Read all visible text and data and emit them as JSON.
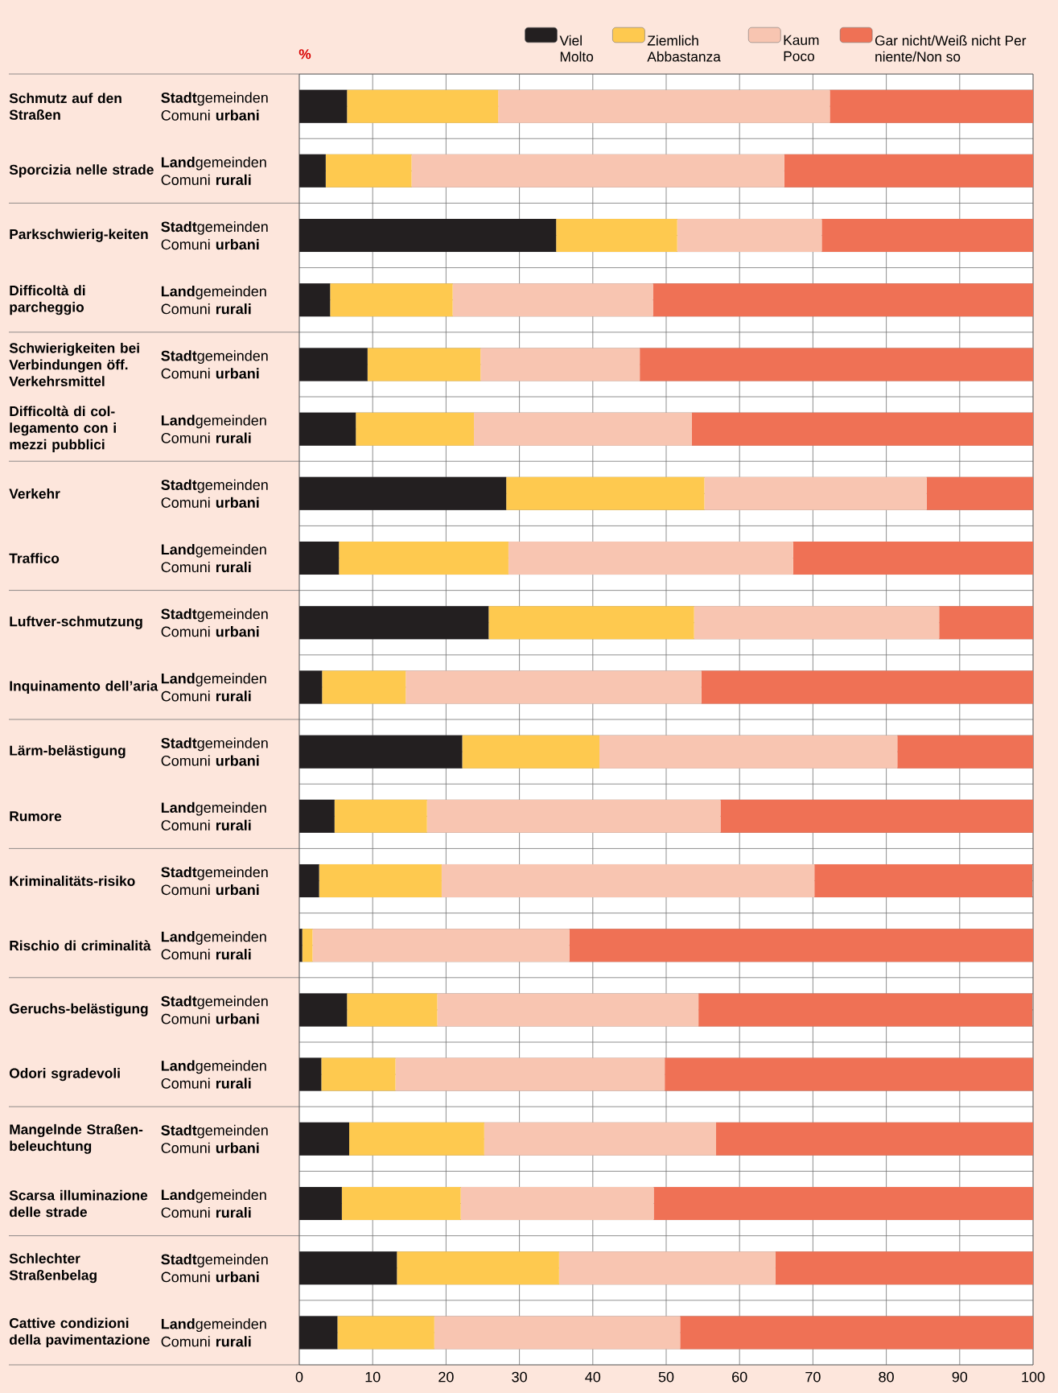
{
  "chart_data": {
    "type": "bar",
    "orientation": "horizontal",
    "stacked": true,
    "xlabel": "%",
    "categories": [
      "**Stadt**gemeinden Comuni **urbani**",
      "**Land**gemeinden Comuni **rurali**",
      "**Stadt**gemeinden Comuni **urbani**",
      "**Land**gemeinden Comuni **rurali**",
      "**Stadt**gemeinden Comuni **urbani**",
      "**Land**gemeinden Comuni **rurali**",
      "**Stadt**gemeinden Comuni **urbani**",
      "**Land**gemeinden Comuni **rurali**",
      "**Stadt**gemeinden Comuni **urbani**",
      "**Land**gemeinden Comuni **rurali**",
      "**Stadt**gemeinden Comuni **urbani**",
      "**Land**gemeinden Comuni **rurali**",
      "**Stadt**gemeinden Comuni **urbani**",
      "**Land**gemeinden Comuni **rurali**",
      "**Stadt**gemeinden Comuni **urbani**",
      "**Land**gemeinden Comuni **rurali**",
      "**Stadt**gemeinden Comuni **urbani**",
      "**Land**gemeinden Comuni **rurali**",
      "**Stadt**gemeinden Comuni **urbani**",
      "**Land**gemeinden Comuni **rurali**"
    ],
    "series": [
      {
        "name": "Viel Molto",
        "color": "#231f20",
        "values": [
          6.5,
          3.6,
          35.0,
          4.2,
          9.3,
          7.7,
          28.2,
          5.4,
          25.8,
          3.1,
          22.2,
          4.8,
          2.7,
          0.4,
          6.5,
          3.0,
          6.8,
          5.8,
          13.3,
          5.2
        ]
      },
      {
        "name": "Ziemlich Abbastanza",
        "color": "#fec94f",
        "values": [
          20.6,
          11.7,
          16.5,
          16.7,
          15.4,
          16.1,
          27.0,
          23.1,
          28.0,
          11.4,
          18.7,
          12.6,
          16.7,
          1.4,
          12.3,
          10.1,
          18.4,
          16.2,
          22.1,
          13.2
        ]
      },
      {
        "name": "Kaum Poco",
        "color": "#f8c5b1",
        "values": [
          45.2,
          50.8,
          19.7,
          27.3,
          21.7,
          29.7,
          30.3,
          38.8,
          33.4,
          40.3,
          40.6,
          40.0,
          50.8,
          35.0,
          35.6,
          36.7,
          31.6,
          26.3,
          29.5,
          33.5
        ]
      },
      {
        "name": "Gar nicht/Weiß nicht Per niente/Non so",
        "color": "#ef7155",
        "values": [
          27.7,
          33.9,
          28.8,
          51.8,
          53.6,
          46.5,
          14.5,
          32.7,
          12.8,
          45.2,
          18.5,
          42.6,
          29.7,
          63.2,
          45.5,
          50.2,
          43.2,
          51.7,
          35.1,
          48.1
        ]
      }
    ],
    "xlim": [
      0,
      100
    ],
    "xticks": [
      0,
      10,
      20,
      30,
      40,
      50,
      60,
      70,
      80,
      90,
      100
    ],
    "grid": true,
    "legend": "top right",
    "annotations": [
      "Schmutz auf den Straßen",
      "Sporcizia nelle strade",
      "Parkschwierig-keiten",
      "Difficoltà di parcheggio",
      "Schwierigkeiten bei Verbindungen öff. Verkehrsmittel",
      "Difficoltà di col-legamento con i mezzi pubblici",
      "Verkehr",
      "Traffico",
      "Luftver-schmutzung",
      "Inquinamento dell’aria",
      "Lärm-belästigung",
      "Rumore",
      "Kriminalitäts-risiko",
      "Rischio di criminalità",
      "Geruchs-belästigung",
      "Odori sgradevoli",
      "Mangelnde Straßen-beleuchtung",
      "Scarsa illuminazione delle strade",
      "Schlechter Straßenbelag",
      "Cattive condizioni della pavimentazione"
    ]
  }
}
